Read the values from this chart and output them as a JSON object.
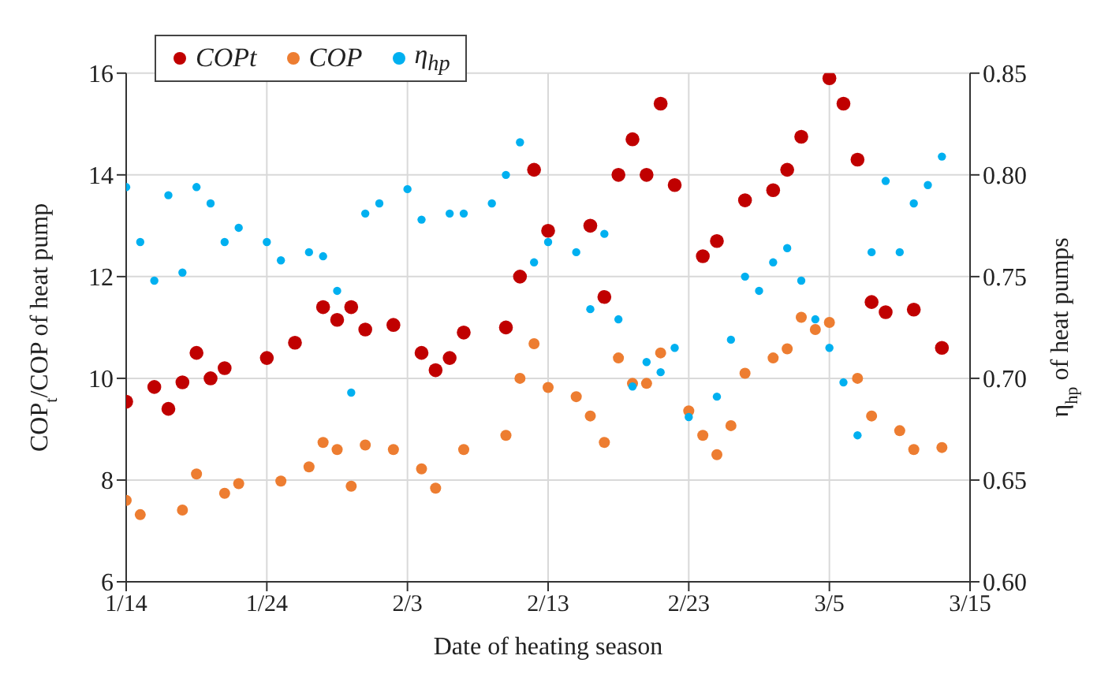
{
  "chart_data": {
    "type": "scatter",
    "xlabel": "Date of heating season",
    "ylabel": "COP$_{t}$/COP of heat pump",
    "y2label": "η$_{hp}$ of heat pumps",
    "xlim": [
      "--01-14",
      "--03-15"
    ],
    "xticks": [
      {
        "value": "--01-14",
        "label": "1/14"
      },
      {
        "value": "--01-24",
        "label": "1/24"
      },
      {
        "value": "--02-03",
        "label": "2/3"
      },
      {
        "value": "--02-13",
        "label": "2/13"
      },
      {
        "value": "--02-23",
        "label": "2/23"
      },
      {
        "value": "--03-05",
        "label": "3/5"
      },
      {
        "value": "--03-15",
        "label": "3/15"
      }
    ],
    "ylim": [
      6,
      16
    ],
    "yticks": [
      6,
      8,
      10,
      12,
      14,
      16
    ],
    "y2lim": [
      0.6,
      0.85
    ],
    "y2ticks": [
      {
        "value": 0.6,
        "label": "0.60"
      },
      0.65,
      {
        "value": 0.7,
        "label": "0.70"
      },
      0.75,
      {
        "value": 0.8,
        "label": "0.80"
      },
      0.85
    ],
    "grid": true,
    "legend": "top left",
    "marker": "circle",
    "series": [
      {
        "name": "COPt",
        "color": "#c00000",
        "x": [
          "--01-14",
          "--01-16",
          "--01-17",
          "--01-18",
          "--01-19",
          "--01-20",
          "--01-21",
          "--01-24",
          "--01-26",
          "--01-28",
          "--01-29",
          "--01-30",
          "--01-31",
          "--02-02",
          "--02-04",
          "--02-05",
          "--02-06",
          "--02-07",
          "--02-10",
          "--02-11",
          "--02-12",
          "--02-13",
          "--02-16",
          "--02-17",
          "--02-18",
          "--02-19",
          "--02-20",
          "--02-21",
          "--02-22",
          "--02-24",
          "--02-25",
          "--02-27",
          "--03-01",
          "--03-02",
          "--03-03",
          "--03-05",
          "--03-06",
          "--03-07",
          "--03-08",
          "--03-09",
          "--03-11",
          "--03-13"
        ],
        "values": [
          9.54,
          9.83,
          9.4,
          9.92,
          10.5,
          10.0,
          10.2,
          10.4,
          10.7,
          11.4,
          11.15,
          11.4,
          10.96,
          11.05,
          10.5,
          10.16,
          10.4,
          10.9,
          11.0,
          12.0,
          14.1,
          12.9,
          13.0,
          11.6,
          14.0,
          14.7,
          14.0,
          15.4,
          13.8,
          12.4,
          12.7,
          13.5,
          13.7,
          14.1,
          14.75,
          15.9,
          15.4,
          14.3,
          11.5,
          11.3,
          11.35,
          10.6
        ]
      },
      {
        "name": "COP",
        "color": "#ed7d31",
        "x": [
          "--01-14",
          "--01-15",
          "--01-18",
          "--01-19",
          "--01-21",
          "--01-22",
          "--01-25",
          "--01-27",
          "--01-28",
          "--01-29",
          "--01-30",
          "--01-31",
          "--02-02",
          "--02-04",
          "--02-05",
          "--02-07",
          "--02-10",
          "--02-11",
          "--02-12",
          "--02-13",
          "--02-15",
          "--02-16",
          "--02-17",
          "--02-18",
          "--02-19",
          "--02-20",
          "--02-21",
          "--02-23",
          "--02-24",
          "--02-25",
          "--02-26",
          "--02-27",
          "--03-01",
          "--03-02",
          "--03-03",
          "--03-04",
          "--03-05",
          "--03-07",
          "--03-08",
          "--03-10",
          "--03-11",
          "--03-13"
        ],
        "values": [
          7.6,
          7.32,
          7.41,
          8.12,
          7.74,
          7.93,
          7.98,
          8.26,
          8.74,
          8.6,
          7.88,
          8.69,
          8.6,
          8.22,
          7.84,
          8.6,
          8.88,
          10.0,
          10.68,
          9.82,
          9.64,
          9.26,
          8.74,
          10.4,
          9.9,
          9.9,
          10.5,
          9.36,
          8.88,
          8.5,
          9.07,
          10.1,
          10.4,
          10.58,
          11.2,
          10.96,
          11.1,
          10.0,
          9.26,
          8.97,
          8.6,
          8.64
        ]
      },
      {
        "name": "η$_{hp}$",
        "color": "#00b0f0",
        "axis": "y2",
        "x": [
          "--01-14",
          "--01-15",
          "--01-16",
          "--01-17",
          "--01-18",
          "--01-19",
          "--01-20",
          "--01-21",
          "--01-22",
          "--01-24",
          "--01-25",
          "--01-27",
          "--01-28",
          "--01-29",
          "--01-30",
          "--01-31",
          "--02-01",
          "--02-03",
          "--02-04",
          "--02-06",
          "--02-07",
          "--02-09",
          "--02-10",
          "--02-11",
          "--02-12",
          "--02-13",
          "--02-15",
          "--02-16",
          "--02-17",
          "--02-18",
          "--02-19",
          "--02-20",
          "--02-21",
          "--02-22",
          "--02-23",
          "--02-25",
          "--02-26",
          "--02-27",
          "--02-28",
          "--03-01",
          "--03-02",
          "--03-03",
          "--03-04",
          "--03-05",
          "--03-06",
          "--03-07",
          "--03-08",
          "--03-09",
          "--03-10",
          "--03-11",
          "--03-12",
          "--03-13"
        ],
        "values": [
          0.794,
          0.767,
          0.748,
          0.79,
          0.752,
          0.794,
          0.786,
          0.767,
          0.774,
          0.767,
          0.758,
          0.762,
          0.76,
          0.743,
          0.693,
          0.781,
          0.786,
          0.793,
          0.778,
          0.781,
          0.781,
          0.786,
          0.8,
          0.816,
          0.757,
          0.767,
          0.762,
          0.734,
          0.771,
          0.729,
          0.696,
          0.708,
          0.703,
          0.715,
          0.681,
          0.691,
          0.719,
          0.75,
          0.743,
          0.757,
          0.764,
          0.748,
          0.729,
          0.715,
          0.698,
          0.672,
          0.762,
          0.797,
          0.762,
          0.786,
          0.795,
          0.809
        ]
      }
    ]
  }
}
